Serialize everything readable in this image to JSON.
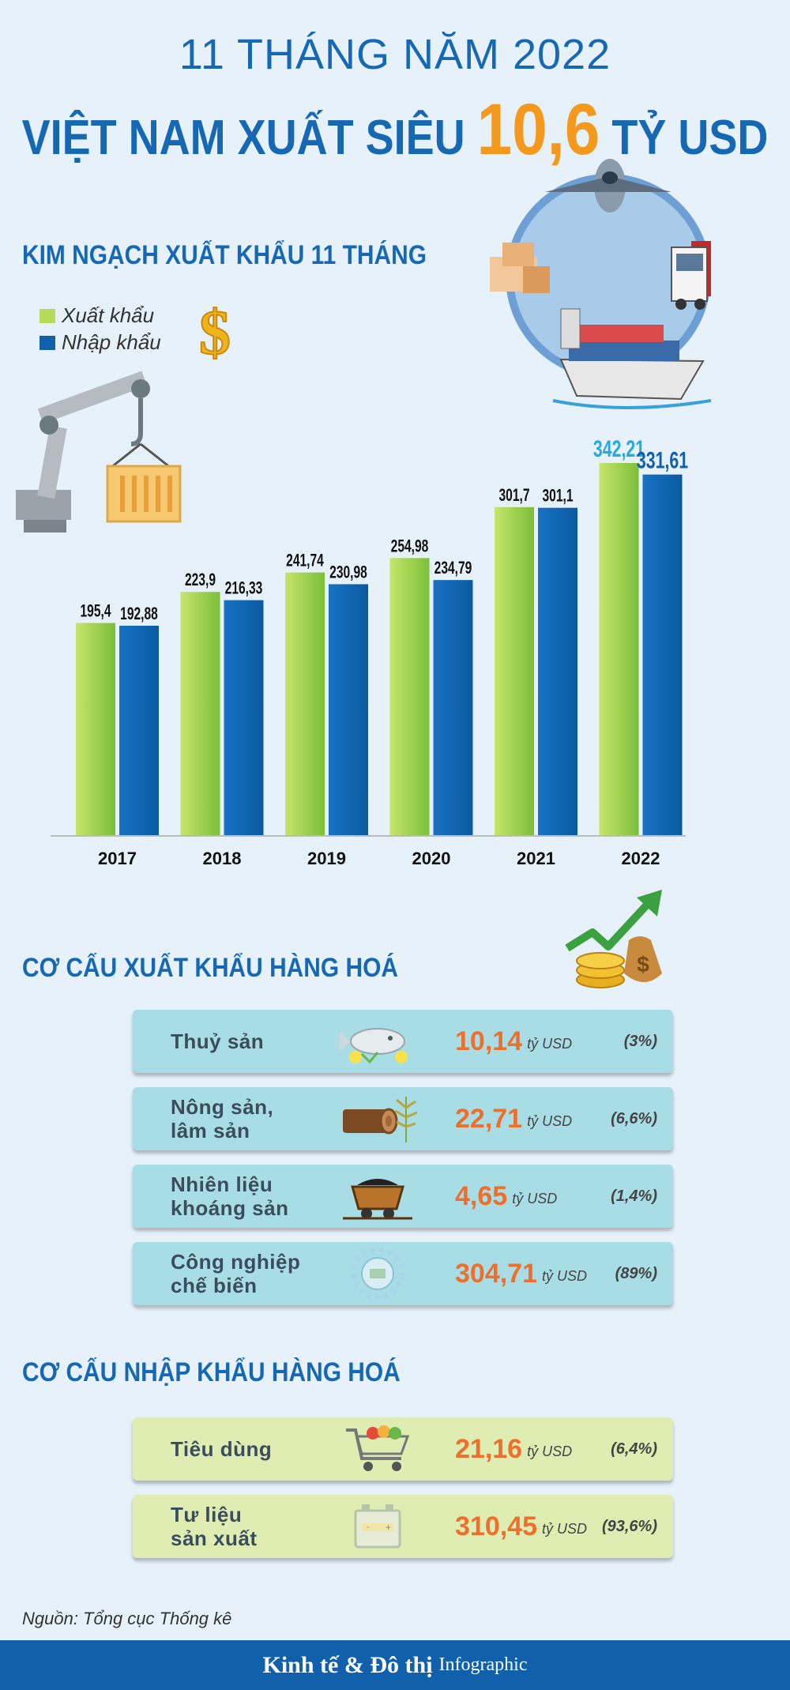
{
  "header": {
    "line1": "11 THÁNG NĂM 2022",
    "line2_prefix": "VIỆT NAM XUẤT SIÊU",
    "line2_value": "10,6",
    "line2_suffix": "TỶ USD"
  },
  "chart_section": {
    "title": "KIM NGẠCH XUẤT KHẨU 11 THÁNG"
  },
  "chart_data": {
    "type": "bar",
    "categories": [
      "2017",
      "2018",
      "2019",
      "2020",
      "2021",
      "2022"
    ],
    "series": [
      {
        "name": "Xuất khẩu",
        "values": [
          195.4,
          223.9,
          241.74,
          254.98,
          301.7,
          342.21
        ],
        "labels": [
          "195,4",
          "223,9",
          "241,74",
          "254,98",
          "301,7",
          "342,21"
        ],
        "color": "#8cc63f"
      },
      {
        "name": "Nhập khẩu",
        "values": [
          192.88,
          216.33,
          230.98,
          234.79,
          301.1,
          331.61
        ],
        "labels": [
          "192,88",
          "216,33",
          "230,98",
          "234,79",
          "301,1",
          "331,61"
        ],
        "color": "#1060ac"
      }
    ],
    "title": "",
    "xlabel": "",
    "ylabel": "",
    "ylim": [
      0,
      342.21
    ],
    "highlight_color": "#2aa8d8",
    "grid": false,
    "legend": "top-left"
  },
  "export_section": {
    "title": "CƠ CẤU XUẤT KHẨU HÀNG HOÁ",
    "rows": [
      {
        "label": "Thuỷ sản",
        "value": "10,14",
        "unit": "tỷ USD",
        "pct": "(3%)",
        "icon": "fish-icon"
      },
      {
        "label": "Nông sản,\nlâm sản",
        "value": "22,71",
        "unit": "tỷ USD",
        "pct": "(6,6%)",
        "icon": "log-icon"
      },
      {
        "label": "Nhiên liệu\nkhoáng sản",
        "value": "4,65",
        "unit": "tỷ USD",
        "pct": "(1,4%)",
        "icon": "mine-cart-icon"
      },
      {
        "label": "Công nghiệp\nchế biến",
        "value": "304,71",
        "unit": "tỷ USD",
        "pct": "(89%)",
        "icon": "gear-icon"
      }
    ]
  },
  "import_section": {
    "title": "CƠ CẤU NHẬP KHẨU HÀNG HOÁ",
    "rows": [
      {
        "label": "Tiêu dùng",
        "value": "21,16",
        "unit": "tỷ USD",
        "pct": "(6,4%)",
        "icon": "shopping-cart-icon"
      },
      {
        "label": "Tư liệu\nsản xuất",
        "value": "310,45",
        "unit": "tỷ USD",
        "pct": "(93,6%)",
        "icon": "battery-icon"
      }
    ]
  },
  "source": "Nguồn: Tổng cục Thống kê",
  "footer": {
    "brand": "Kinh tế & Đô thị",
    "sub": "Infographic"
  }
}
